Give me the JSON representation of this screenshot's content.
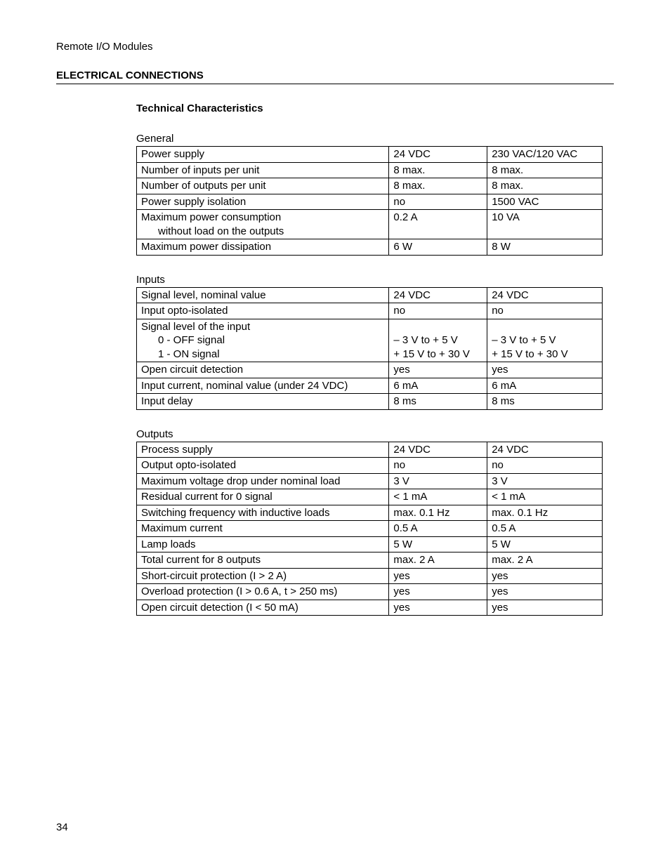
{
  "header_title": "Remote I/O Modules",
  "section_title": "ELECTRICAL CONNECTIONS",
  "sub_title": "Technical Characteristics",
  "page_number": "34",
  "tables": {
    "general": {
      "label": "General",
      "rows": [
        {
          "name": "Power supply",
          "col1": "24 VDC",
          "col2": "230 VAC/120 VAC"
        },
        {
          "name": "Number of inputs per unit",
          "col1": "8 max.",
          "col2": "8 max."
        },
        {
          "name": "Number of outputs per unit",
          "col1": "8 max.",
          "col2": "8 max."
        },
        {
          "name": "Power supply isolation",
          "col1": "no",
          "col2": "1500 VAC"
        },
        {
          "name": "Maximum power consumption",
          "sub": "without load on the outputs",
          "col1": "0.2 A",
          "col2": "10 VA"
        },
        {
          "name": "Maximum power dissipation",
          "col1": "6 W",
          "col2": "8 W"
        }
      ]
    },
    "inputs": {
      "label": "Inputs",
      "rows": [
        {
          "name": "Signal level, nominal value",
          "col1": "24 VDC",
          "col2": "24 VDC"
        },
        {
          "name": "Input opto-isolated",
          "col1": "no",
          "col2": "no"
        },
        {
          "name": "Signal level of the input",
          "sub1": "0 - OFF signal",
          "sub2": "1 - ON signal",
          "col1_line1": "",
          "col1_line2": "– 3 V to + 5 V",
          "col1_line3": "+ 15 V to + 30 V",
          "col2_line1": "",
          "col2_line2": "– 3 V to + 5 V",
          "col2_line3": "+ 15 V to + 30 V"
        },
        {
          "name": "Open circuit detection",
          "col1": "yes",
          "col2": "yes"
        },
        {
          "name": "Input current, nominal value (under 24 VDC)",
          "col1": "6 mA",
          "col2": "6 mA"
        },
        {
          "name": "Input delay",
          "col1": "8 ms",
          "col2": "8 ms"
        }
      ]
    },
    "outputs": {
      "label": "Outputs",
      "rows": [
        {
          "name": "Process supply",
          "col1": "24 VDC",
          "col2": "24 VDC"
        },
        {
          "name": "Output opto-isolated",
          "col1": "no",
          "col2": "no"
        },
        {
          "name": "Maximum voltage drop under nominal load",
          "col1": "3 V",
          "col2": "3 V"
        },
        {
          "name": "Residual current for 0 signal",
          "col1": "< 1 mA",
          "col2": "< 1 mA"
        },
        {
          "name": "Switching frequency with inductive loads",
          "col1": "max. 0.1 Hz",
          "col2": "max. 0.1 Hz"
        },
        {
          "name": "Maximum current",
          "col1": "0.5 A",
          "col2": "0.5 A"
        },
        {
          "name": "Lamp loads",
          "col1": "5 W",
          "col2": "5 W"
        },
        {
          "name": "Total current for 8 outputs",
          "col1": "max. 2 A",
          "col2": "max. 2 A"
        },
        {
          "name": "Short-circuit protection (I > 2 A)",
          "col1": "yes",
          "col2": "yes"
        },
        {
          "name": "Overload protection (I > 0.6 A, t > 250 ms)",
          "col1": "yes",
          "col2": "yes"
        },
        {
          "name": "Open circuit detection (I < 50 mA)",
          "col1": "yes",
          "col2": "yes"
        }
      ]
    }
  }
}
